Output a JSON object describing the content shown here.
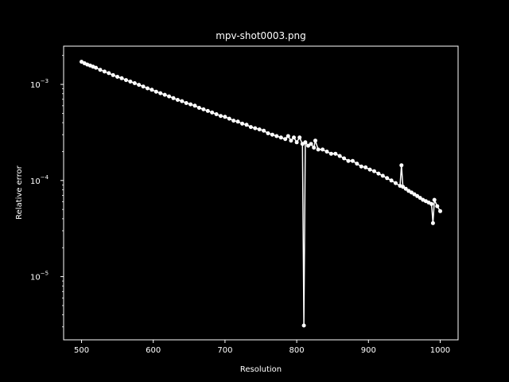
{
  "chart_data": {
    "type": "line",
    "title": "mpv-shot0003.png",
    "xlabel": "Resolution",
    "ylabel": "Relative error",
    "yscale": "log",
    "xlim": [
      475,
      1025
    ],
    "ylim": [
      2.2e-06,
      0.0025
    ],
    "x_ticks": [
      500,
      600,
      700,
      800,
      900,
      1000
    ],
    "y_ticks": [
      {
        "value": 1e-05,
        "base": "10",
        "exp": "−5"
      },
      {
        "value": 0.0001,
        "base": "10",
        "exp": "−4"
      },
      {
        "value": 0.001,
        "base": "10",
        "exp": "−3"
      }
    ],
    "grid": false,
    "colors": {
      "background": "#000000",
      "line": "#ffffff",
      "text": "#ffffff"
    },
    "series": [
      {
        "points": [
          [
            500,
            0.00172
          ],
          [
            504,
            0.00166
          ],
          [
            508,
            0.00161
          ],
          [
            512,
            0.00157
          ],
          [
            516,
            0.00153
          ],
          [
            520,
            0.00149
          ],
          [
            526,
            0.00142
          ],
          [
            532,
            0.00136
          ],
          [
            538,
            0.00131
          ],
          [
            544,
            0.00125
          ],
          [
            550,
            0.0012
          ],
          [
            556,
            0.00116
          ],
          [
            562,
            0.00111
          ],
          [
            568,
            0.00107
          ],
          [
            574,
            0.00103
          ],
          [
            580,
            0.00099
          ],
          [
            586,
            0.00095
          ],
          [
            592,
            0.00091
          ],
          [
            598,
            0.00088
          ],
          [
            604,
            0.00084
          ],
          [
            610,
            0.00081
          ],
          [
            616,
            0.00078
          ],
          [
            622,
            0.00075
          ],
          [
            628,
            0.00072
          ],
          [
            634,
            0.00069
          ],
          [
            640,
            0.00067
          ],
          [
            646,
            0.00064
          ],
          [
            652,
            0.00062
          ],
          [
            658,
            0.0006
          ],
          [
            664,
            0.00057
          ],
          [
            670,
            0.00055
          ],
          [
            676,
            0.00053
          ],
          [
            682,
            0.00051
          ],
          [
            688,
            0.00049
          ],
          [
            694,
            0.00047
          ],
          [
            700,
            0.00046
          ],
          [
            706,
            0.00044
          ],
          [
            712,
            0.00042
          ],
          [
            718,
            0.00041
          ],
          [
            724,
            0.00039
          ],
          [
            730,
            0.00038
          ],
          [
            736,
            0.00036
          ],
          [
            742,
            0.00035
          ],
          [
            748,
            0.00034
          ],
          [
            754,
            0.00033
          ],
          [
            760,
            0.00031
          ],
          [
            766,
            0.0003
          ],
          [
            772,
            0.00029
          ],
          [
            778,
            0.00028
          ],
          [
            784,
            0.00027
          ],
          [
            788,
            0.00029
          ],
          [
            792,
            0.00026
          ],
          [
            796,
            0.00028
          ],
          [
            800,
            0.00025
          ],
          [
            804,
            0.00028
          ],
          [
            808,
            0.00024
          ],
          [
            810,
            3.1e-06
          ],
          [
            812,
            0.00025
          ],
          [
            816,
            0.00023
          ],
          [
            820,
            0.00024
          ],
          [
            824,
            0.00022
          ],
          [
            826,
            0.00026
          ],
          [
            830,
            0.00021
          ],
          [
            836,
            0.00021
          ],
          [
            842,
            0.0002
          ],
          [
            848,
            0.00019
          ],
          [
            854,
            0.00019
          ],
          [
            860,
            0.00018
          ],
          [
            866,
            0.00017
          ],
          [
            872,
            0.00016
          ],
          [
            878,
            0.00016
          ],
          [
            884,
            0.00015
          ],
          [
            890,
            0.00014
          ],
          [
            896,
            0.000137
          ],
          [
            902,
            0.00013
          ],
          [
            908,
            0.000125
          ],
          [
            914,
            0.000118
          ],
          [
            920,
            0.000112
          ],
          [
            926,
            0.000106
          ],
          [
            932,
            0.0001
          ],
          [
            938,
            9.4e-05
          ],
          [
            944,
            8.8e-05
          ],
          [
            946,
            0.000144
          ],
          [
            948,
            8.6e-05
          ],
          [
            952,
            8.2e-05
          ],
          [
            956,
            7.8e-05
          ],
          [
            960,
            7.5e-05
          ],
          [
            964,
            7.2e-05
          ],
          [
            968,
            6.9e-05
          ],
          [
            972,
            6.6e-05
          ],
          [
            976,
            6.3e-05
          ],
          [
            980,
            6.1e-05
          ],
          [
            984,
            5.9e-05
          ],
          [
            988,
            5.7e-05
          ],
          [
            990,
            3.6e-05
          ],
          [
            992,
            6.3e-05
          ],
          [
            996,
            5.4e-05
          ],
          [
            1000,
            4.8e-05
          ]
        ]
      }
    ]
  }
}
